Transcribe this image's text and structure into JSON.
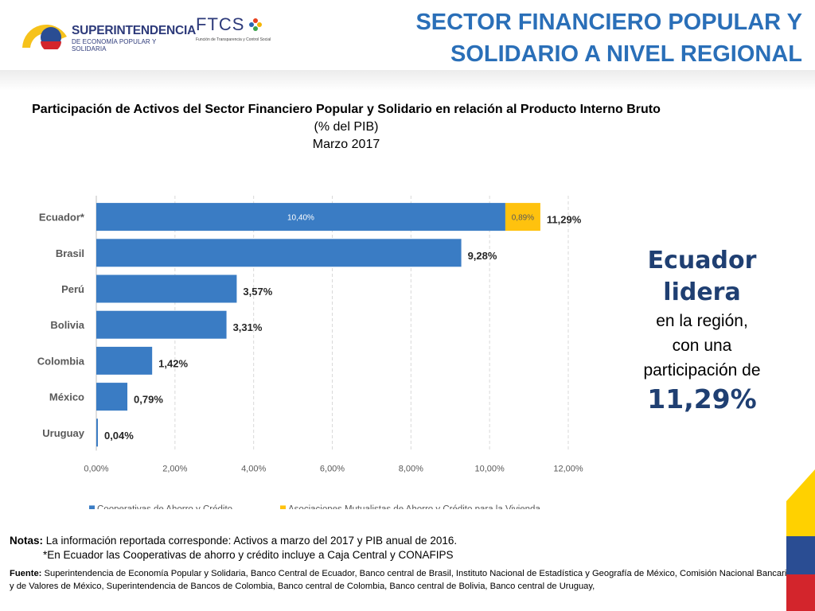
{
  "header": {
    "title_line1": "SECTOR FINANCIERO POPULAR Y",
    "title_line2": "SOLIDARIO A NIVEL REGIONAL",
    "logo1_line1": "SUPERINTENDENCIA",
    "logo1_line2": "DE ECONOMÍA POPULAR Y SOLIDARIA",
    "logo2_name": "FTCS",
    "logo2_sub": "Función de Transparencia y Control Social"
  },
  "chart_title": {
    "line1": "Participación de Activos del Sector Financiero Popular y Solidario en relación al Producto Interno Bruto",
    "line2": "(% del PIB)",
    "line3": "Marzo 2017"
  },
  "chart_data": {
    "type": "bar",
    "orientation": "horizontal",
    "stacked": true,
    "categories": [
      "Ecuador*",
      "Brasil",
      "Perú",
      "Bolivia",
      "Colombia",
      "México",
      "Uruguay"
    ],
    "series": [
      {
        "name": "Cooperativas de Ahorro y Crédito",
        "color": "#3a7cc4",
        "values": [
          10.4,
          9.28,
          3.57,
          3.31,
          1.42,
          0.79,
          0.04
        ]
      },
      {
        "name": "Asociaciones Mutualistas de Ahorro y Crédito para la Vivienda",
        "color": "#ffc20e",
        "values": [
          0.89,
          0,
          0,
          0,
          0,
          0,
          0
        ]
      }
    ],
    "segment_labels": [
      "10,40%",
      "0,89%"
    ],
    "total_labels": [
      "11,29%",
      "9,28%",
      "3,57%",
      "3,31%",
      "1,42%",
      "0,79%",
      "0,04%"
    ],
    "xlim": [
      0,
      12
    ],
    "xticks": [
      "0,00%",
      "2,00%",
      "4,00%",
      "6,00%",
      "8,00%",
      "10,00%",
      "12,00%"
    ],
    "grid": true,
    "legend_position": "bottom"
  },
  "side_text": {
    "headline": "Ecuador lidera",
    "line1": "en la región,",
    "line2": "con una",
    "line3": "participación de",
    "value": "11,29%"
  },
  "notes": {
    "label": "Notas:",
    "line1": "La información reportada corresponde: Activos a marzo del 2017 y  PIB anual de 2016.",
    "line2": "*En Ecuador las Cooperativas de ahorro y crédito incluye a Caja Central y CONAFIPS"
  },
  "source": {
    "label": "Fuente:",
    "text": "Superintendencia de Economía Popular y Solidaria, Banco Central de Ecuador, Banco central de Brasil, Instituto Nacional de Estadística y Geografía de  México, Comisión Nacional Bancaria y de Valores de México, Superintendencia de Bancos de Colombia, Banco central de Colombia, Banco central de Bolivia,  Banco central de Uruguay,"
  },
  "colors": {
    "title_blue": "#2a6fb8",
    "navy": "#1f3f72",
    "bar_blue": "#3a7cc4",
    "bar_yellow": "#ffc20e"
  }
}
